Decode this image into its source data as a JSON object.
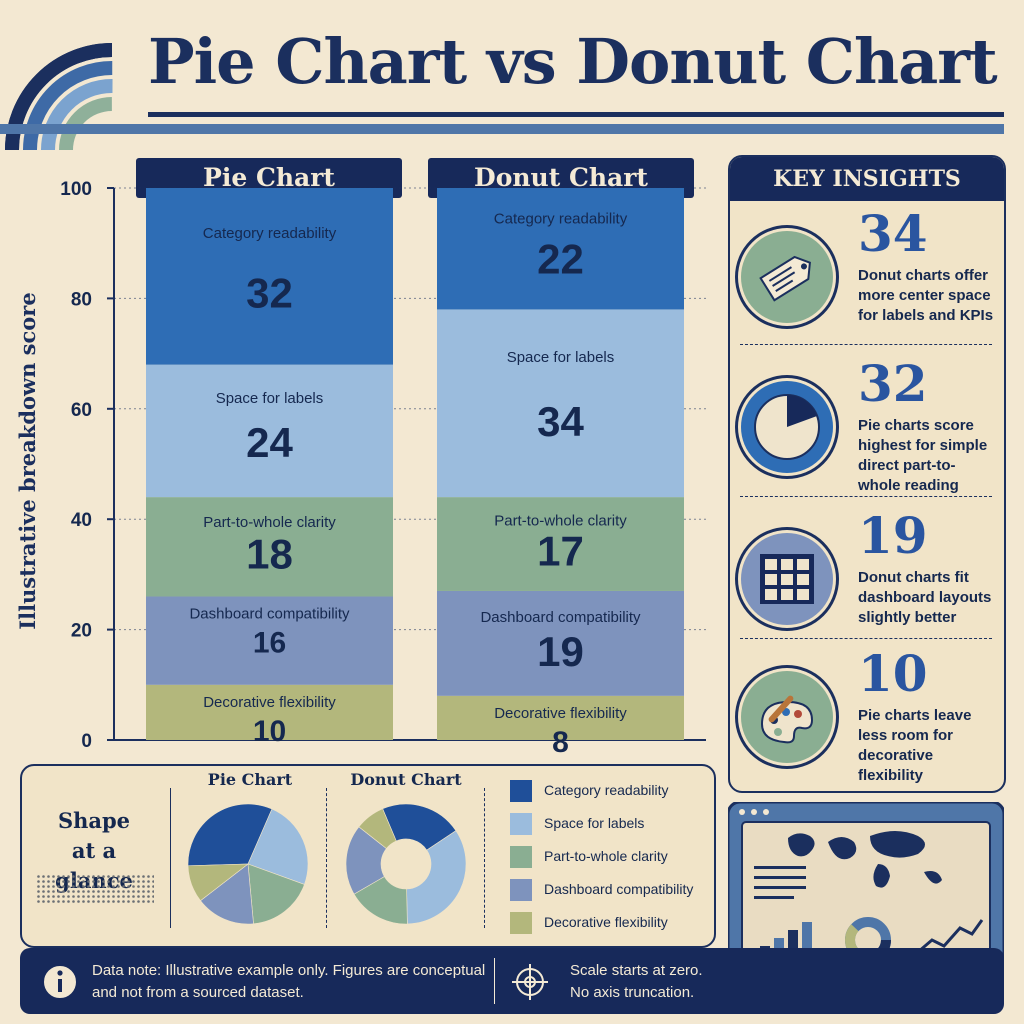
{
  "title": "Pie Chart vs Donut Chart",
  "chart_data": {
    "type": "bar",
    "stacked": true,
    "ylabel": "Illustrative breakdown score",
    "ylim": [
      0,
      100
    ],
    "yticks": [
      0,
      20,
      40,
      60,
      80,
      100
    ],
    "grid": true,
    "categories": [
      "Pie Chart",
      "Donut Chart"
    ],
    "series": [
      {
        "name": "Decorative flexibility",
        "values": [
          10,
          8
        ],
        "color": "#b3b77c"
      },
      {
        "name": "Dashboard compatibility",
        "values": [
          16,
          19
        ],
        "color": "#7e93bd"
      },
      {
        "name": "Part-to-whole clarity",
        "values": [
          18,
          17
        ],
        "color": "#8aae92"
      },
      {
        "name": "Space for labels",
        "values": [
          24,
          34
        ],
        "color": "#9bbcdd"
      },
      {
        "name": "Category readability",
        "values": [
          32,
          22
        ],
        "color": "#2e6db5"
      }
    ]
  },
  "insights": {
    "title": "KEY INSIGHTS",
    "items": [
      {
        "number": "34",
        "lines": [
          "Donut charts offer",
          "more center space",
          "for labels and KPIs"
        ],
        "icon": "tag-icon"
      },
      {
        "number": "32",
        "lines": [
          "Pie charts score",
          "highest for simple",
          "direct part-to-",
          "whole reading"
        ],
        "icon": "pie-icon"
      },
      {
        "number": "19",
        "lines": [
          "Donut charts fit",
          "dashboard layouts",
          "slightly better"
        ],
        "icon": "grid-icon"
      },
      {
        "number": "10",
        "lines": [
          "Pie charts leave",
          "less room for",
          "decorative",
          "flexibility"
        ],
        "icon": "palette-icon"
      }
    ]
  },
  "glance": {
    "title_lines": [
      "Shape",
      "at a glance"
    ],
    "pie_label": "Pie Chart",
    "donut_label": "Donut Chart"
  },
  "legend": [
    {
      "label": "Category readability",
      "color": "#1f4f99"
    },
    {
      "label": "Space for labels",
      "color": "#9bbcdd"
    },
    {
      "label": "Part-to-whole clarity",
      "color": "#8aae92"
    },
    {
      "label": "Dashboard compatibility",
      "color": "#7e93bd"
    },
    {
      "label": "Decorative flexibility",
      "color": "#b3b77c"
    }
  ],
  "footer": {
    "note_lines": [
      "Data note: Illustrative example only. Figures are conceptual",
      "and not from a sourced dataset."
    ],
    "scale_lines": [
      "Scale starts at zero.",
      "No axis truncation."
    ]
  }
}
